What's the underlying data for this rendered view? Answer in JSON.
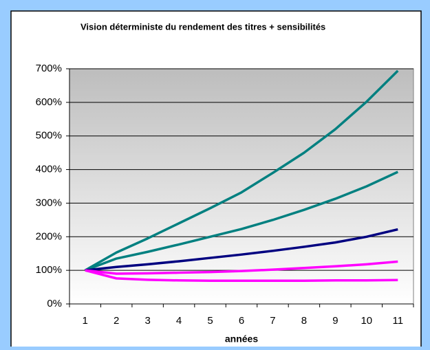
{
  "chart_data": {
    "type": "line",
    "title": "Vision déterministe du rendement des titres + sensibilités",
    "x_label": "années",
    "categories": [
      1,
      2,
      3,
      4,
      5,
      6,
      7,
      8,
      9,
      10,
      11
    ],
    "series": [
      {
        "color": "#008080",
        "values": [
          100,
          153,
          195,
          240,
          285,
          332,
          390,
          450,
          520,
          602,
          694
        ]
      },
      {
        "color": "#008080",
        "values": [
          100,
          135,
          155,
          177,
          200,
          223,
          250,
          280,
          313,
          350,
          393
        ]
      },
      {
        "color": "#000080",
        "values": [
          100,
          110,
          118,
          127,
          137,
          147,
          158,
          170,
          183,
          200,
          222
        ]
      },
      {
        "color": "#ff00ff",
        "values": [
          100,
          90,
          91,
          93,
          95,
          98,
          102,
          107,
          112,
          118,
          126
        ]
      },
      {
        "color": "#ff00ff",
        "values": [
          100,
          76,
          72,
          70,
          69,
          69,
          69,
          69,
          70,
          70,
          71
        ]
      }
    ],
    "ylim": [
      0,
      700
    ],
    "yticks": [
      {
        "value": 0,
        "label": "0%"
      },
      {
        "value": 100,
        "label": "100%"
      },
      {
        "value": 200,
        "label": "200%"
      },
      {
        "value": 300,
        "label": "300%"
      },
      {
        "value": 400,
        "label": "400%"
      },
      {
        "value": 500,
        "label": "500%"
      },
      {
        "value": 600,
        "label": "600%"
      },
      {
        "value": 700,
        "label": "700%"
      }
    ],
    "grid": true
  }
}
